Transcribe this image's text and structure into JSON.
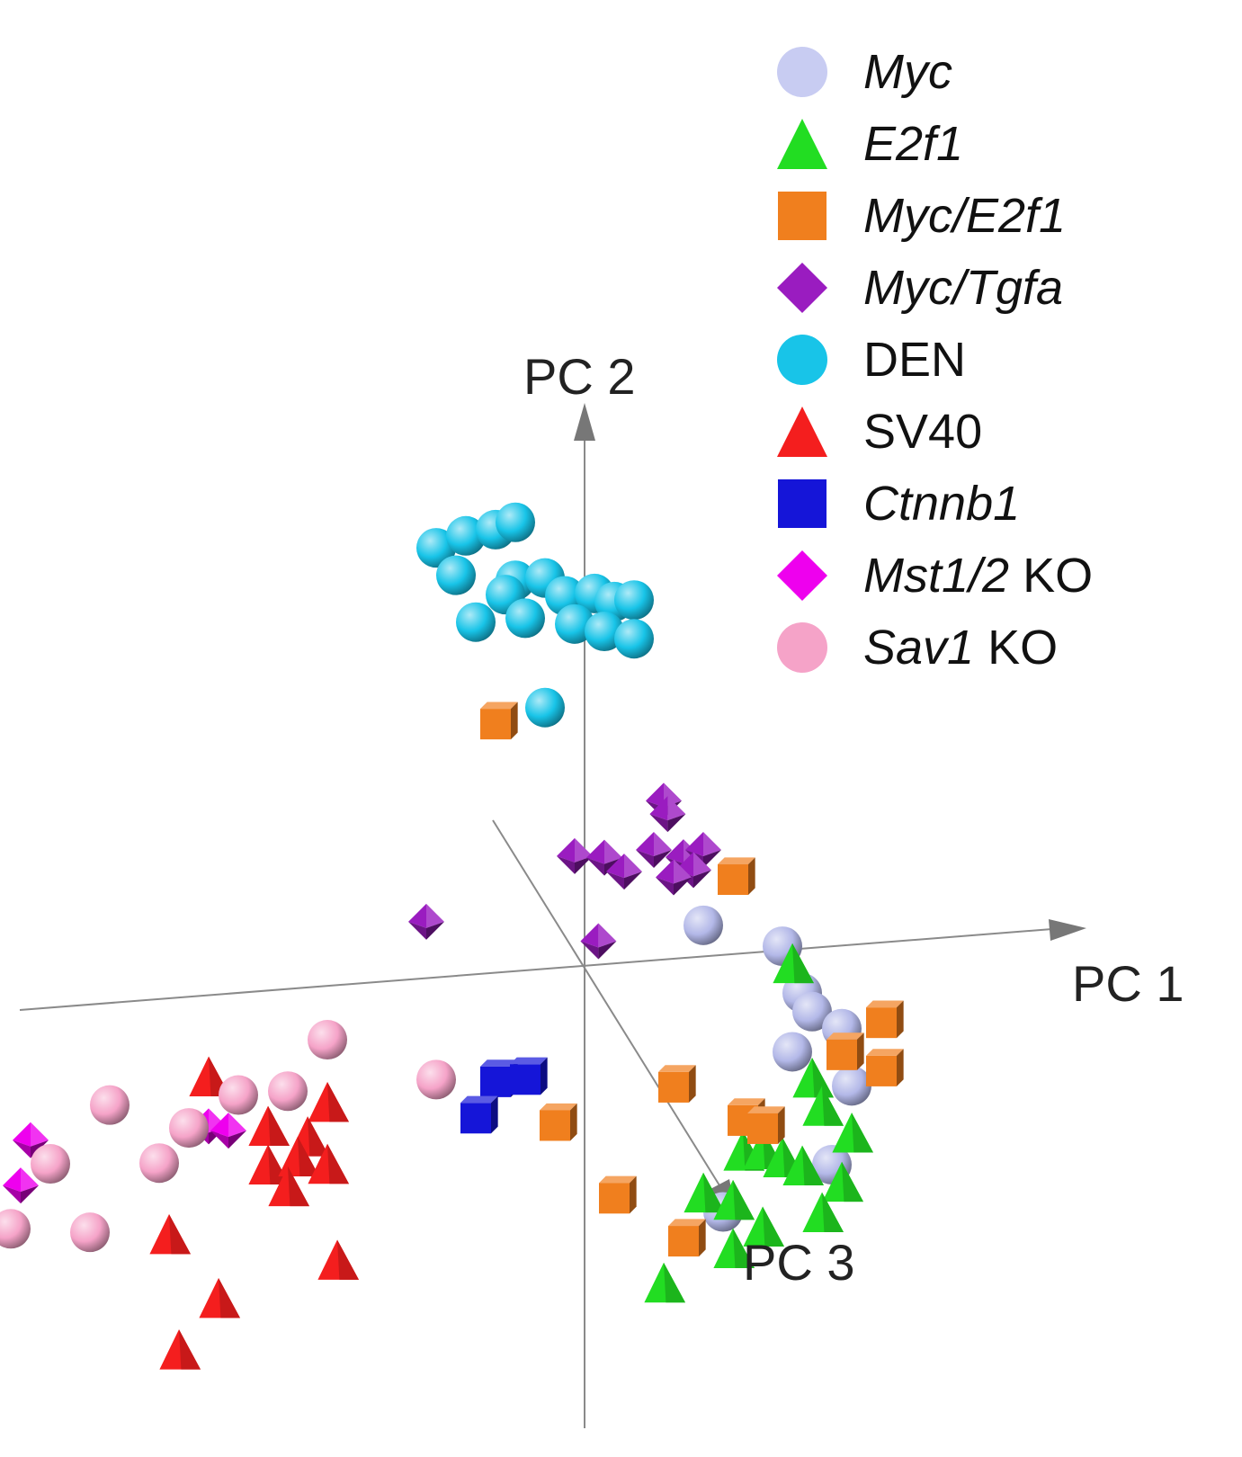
{
  "chart_data": {
    "type": "scatter",
    "title": "",
    "axes": {
      "x": "PC 1",
      "y": "PC 2",
      "z": "PC 3"
    },
    "grid": false,
    "legend_position": "top-right",
    "series": [
      {
        "name": "Myc",
        "name_parts": [
          {
            "text": "Myc",
            "italic": true
          }
        ],
        "marker": "sphere",
        "color": "#b3b8e8",
        "points": [
          [
            6,
            1.9
          ],
          [
            10,
            0.5
          ],
          [
            11,
            -2
          ],
          [
            11.5,
            -3
          ],
          [
            13,
            -4
          ],
          [
            10.5,
            -5
          ],
          [
            13.5,
            -7
          ],
          [
            12.5,
            -11
          ],
          [
            7,
            -13
          ]
        ]
      },
      {
        "name": "E2f1",
        "name_parts": [
          {
            "text": "E2f1",
            "italic": true
          }
        ],
        "marker": "triangle",
        "color": "#22dd22",
        "points": [
          [
            10.5,
            -0.5
          ],
          [
            11.5,
            -6.5
          ],
          [
            12,
            -8
          ],
          [
            13.5,
            -9.5
          ],
          [
            8,
            -10
          ],
          [
            9,
            -10
          ],
          [
            10,
            -10.5
          ],
          [
            11,
            -11
          ],
          [
            6,
            -12
          ],
          [
            13,
            -12
          ],
          [
            7.5,
            -12.5
          ],
          [
            12,
            -13.5
          ],
          [
            9,
            -14
          ],
          [
            7.5,
            -15
          ],
          [
            4,
            -16.5
          ]
        ]
      },
      {
        "name": "Myc/E2f1",
        "name_parts": [
          {
            "text": "Myc/E2f1",
            "italic": true
          }
        ],
        "marker": "cube",
        "color": "#f07f1e",
        "points": [
          [
            -4.5,
            13.5
          ],
          [
            7.5,
            4.5
          ],
          [
            15,
            -3.5
          ],
          [
            13,
            -5
          ],
          [
            15,
            -6
          ],
          [
            4.5,
            -6
          ],
          [
            -1.5,
            -7.5
          ],
          [
            8,
            -8
          ],
          [
            9,
            -8.5
          ],
          [
            1.5,
            -11.5
          ],
          [
            5,
            -14
          ]
        ]
      },
      {
        "name": "Myc/Tgfa",
        "name_parts": [
          {
            "text": "Myc/Tgfa",
            "italic": true
          }
        ],
        "marker": "octahedron",
        "color": "#9a1cc0",
        "points": [
          [
            4,
            8.5
          ],
          [
            4.2,
            7.8
          ],
          [
            -0.5,
            6
          ],
          [
            1,
            5.8
          ],
          [
            3.5,
            6
          ],
          [
            5,
            5.5
          ],
          [
            6,
            5.8
          ],
          [
            2,
            5
          ],
          [
            5.5,
            4.8
          ],
          [
            4.5,
            4.5
          ],
          [
            -8,
            3.2
          ],
          [
            0.7,
            1.5
          ]
        ]
      },
      {
        "name": "DEN",
        "name_parts": [
          {
            "text": "DEN",
            "upright": true
          }
        ],
        "marker": "sphere",
        "color": "#18c4e8",
        "points": [
          [
            -7.5,
            22.5
          ],
          [
            -6,
            23
          ],
          [
            -4.5,
            23.2
          ],
          [
            -3.5,
            23.5
          ],
          [
            -6.5,
            21
          ],
          [
            -3.5,
            20.5
          ],
          [
            -2,
            20.5
          ],
          [
            -4,
            19.8
          ],
          [
            -1,
            19.5
          ],
          [
            0.5,
            19.5
          ],
          [
            1.5,
            19
          ],
          [
            2.5,
            19
          ],
          [
            -5.5,
            18.5
          ],
          [
            -3,
            18.5
          ],
          [
            -0.5,
            18
          ],
          [
            1,
            17.5
          ],
          [
            2.5,
            17
          ],
          [
            -2,
            13.8
          ]
        ]
      },
      {
        "name": "SV40",
        "name_parts": [
          {
            "text": "SV40",
            "upright": true
          }
        ],
        "marker": "triangle",
        "color": "#f41e1e",
        "points": [
          [
            -19,
            -4
          ],
          [
            -13,
            -5.8
          ],
          [
            -16,
            -6.8
          ],
          [
            -14,
            -7.5
          ],
          [
            -16,
            -8.8
          ],
          [
            -14.5,
            -8.5
          ],
          [
            -13,
            -9
          ],
          [
            -15,
            -10
          ],
          [
            -21,
            -12
          ],
          [
            -12.5,
            -14
          ],
          [
            -18.5,
            -15.5
          ],
          [
            -20.5,
            -18
          ]
        ]
      },
      {
        "name": "Ctnnb1",
        "name_parts": [
          {
            "text": "Ctnnb1",
            "italic": true
          }
        ],
        "marker": "cube",
        "color": "#1515d8",
        "points": [
          [
            -4.5,
            -5
          ],
          [
            -3,
            -5
          ],
          [
            -5.5,
            -6.8
          ]
        ]
      },
      {
        "name": "Mst1/2 KO",
        "name_parts": [
          {
            "text": "Mst1/2",
            "italic": true
          },
          {
            "text": " KO",
            "upright": true
          }
        ],
        "marker": "octahedron",
        "color": "#ee00ee",
        "points": [
          [
            -28,
            -6.5
          ],
          [
            -28.5,
            -8.8
          ],
          [
            -19,
            -6.5
          ],
          [
            -18,
            -6.8
          ]
        ]
      },
      {
        "name": "Sav1 KO",
        "name_parts": [
          {
            "text": "Sav1",
            "italic": true
          },
          {
            "text": " KO",
            "upright": true
          }
        ],
        "marker": "sphere",
        "color": "#f5a3c8",
        "points": [
          [
            -13,
            -2.5
          ],
          [
            -24,
            -5
          ],
          [
            -17.5,
            -5
          ],
          [
            -15,
            -5
          ],
          [
            -7.5,
            -5
          ],
          [
            -20,
            -6.5
          ],
          [
            -27,
            -7.8
          ],
          [
            -21.5,
            -8.2
          ],
          [
            -29,
            -11
          ],
          [
            -25,
            -11.5
          ]
        ]
      }
    ]
  },
  "legend": {
    "items": [
      {
        "label_italic": "Myc",
        "label_upright": ""
      },
      {
        "label_italic": "E2f1",
        "label_upright": ""
      },
      {
        "label_italic": "Myc/E2f1",
        "label_upright": ""
      },
      {
        "label_italic": "Myc/Tgfa",
        "label_upright": ""
      },
      {
        "label_italic": "",
        "label_upright": "DEN"
      },
      {
        "label_italic": "",
        "label_upright": "SV40"
      },
      {
        "label_italic": "Ctnnb1",
        "label_upright": ""
      },
      {
        "label_italic": "Mst1/2",
        "label_upright": " KO"
      },
      {
        "label_italic": "Sav1",
        "label_upright": " KO"
      }
    ]
  }
}
